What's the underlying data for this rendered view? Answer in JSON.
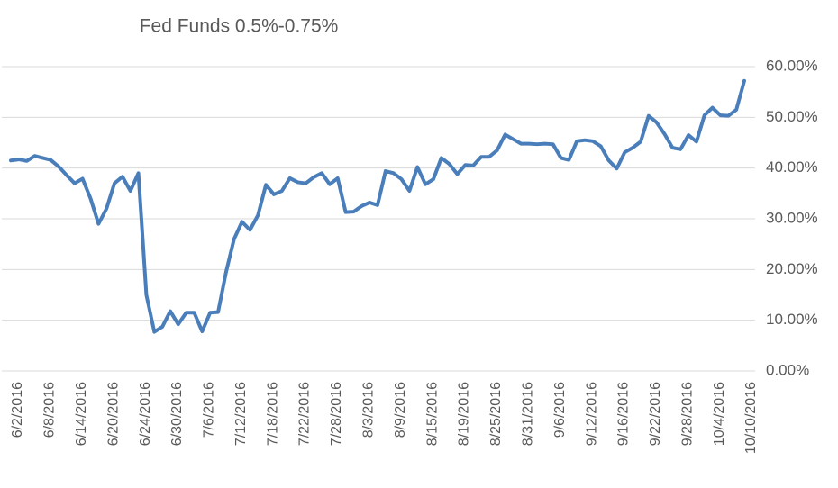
{
  "chart_data": {
    "type": "line",
    "title": "Fed Funds 0.5%-0.75%",
    "categories": [
      "6/2/2016",
      null,
      null,
      null,
      "6/8/2016",
      null,
      null,
      null,
      "6/14/2016",
      null,
      null,
      null,
      "6/20/2016",
      null,
      null,
      null,
      "6/24/2016",
      null,
      null,
      null,
      "6/30/2016",
      null,
      null,
      null,
      "7/6/2016",
      null,
      null,
      null,
      "7/12/2016",
      null,
      null,
      null,
      "7/18/2016",
      null,
      null,
      null,
      "7/22/2016",
      null,
      null,
      null,
      "7/28/2016",
      null,
      null,
      null,
      "8/3/2016",
      null,
      null,
      null,
      "8/9/2016",
      null,
      null,
      null,
      "8/15/2016",
      null,
      null,
      null,
      "8/19/2016",
      null,
      null,
      null,
      "8/25/2016",
      null,
      null,
      null,
      "8/31/2016",
      null,
      null,
      null,
      "9/6/2016",
      null,
      null,
      null,
      "9/12/2016",
      null,
      null,
      null,
      "9/16/2016",
      null,
      null,
      null,
      "9/22/2016",
      null,
      null,
      null,
      "9/28/2016",
      null,
      null,
      null,
      "10/4/2016",
      null,
      null,
      null,
      "10/10/2016"
    ],
    "series": [
      {
        "name": "Fed Funds 0.5%-0.75%",
        "color": "#4a7ebb",
        "values": [
          41.5,
          41.7,
          41.4,
          42.4,
          42.0,
          41.6,
          40.3,
          38.6,
          37.0,
          37.9,
          34.0,
          29.0,
          32.0,
          37.0,
          38.3,
          35.5,
          39.0,
          15.0,
          7.7,
          8.7,
          11.8,
          9.2,
          11.5,
          11.5,
          7.8,
          11.5,
          11.6,
          19.5,
          26.0,
          29.4,
          27.8,
          30.7,
          36.7,
          34.8,
          35.5,
          38.0,
          37.2,
          37.0,
          38.2,
          39.0,
          36.8,
          38.0,
          31.3,
          31.4,
          32.5,
          33.2,
          32.7,
          39.4,
          39.0,
          37.8,
          35.5,
          40.2,
          36.8,
          37.8,
          42.0,
          40.8,
          38.8,
          40.6,
          40.5,
          42.2,
          42.2,
          43.5,
          46.6,
          45.7,
          44.8,
          44.8,
          44.7,
          44.8,
          44.7,
          42.0,
          41.6,
          45.3,
          45.5,
          45.3,
          44.3,
          41.5,
          39.9,
          43.1,
          44.0,
          45.2,
          50.3,
          49.0,
          46.7,
          44.0,
          43.7,
          46.5,
          45.2,
          50.4,
          51.9,
          50.4,
          50.3,
          51.5,
          57.2
        ]
      }
    ],
    "ylim": [
      0,
      60
    ],
    "yticks": [
      {
        "value": 0,
        "label": "0.00%"
      },
      {
        "value": 10,
        "label": "10.00%"
      },
      {
        "value": 20,
        "label": "20.00%"
      },
      {
        "value": 30,
        "label": "30.00%"
      },
      {
        "value": 40,
        "label": "40.00%"
      },
      {
        "value": 50,
        "label": "50.00%"
      },
      {
        "value": 60,
        "label": "60.00%"
      }
    ],
    "grid": true
  }
}
